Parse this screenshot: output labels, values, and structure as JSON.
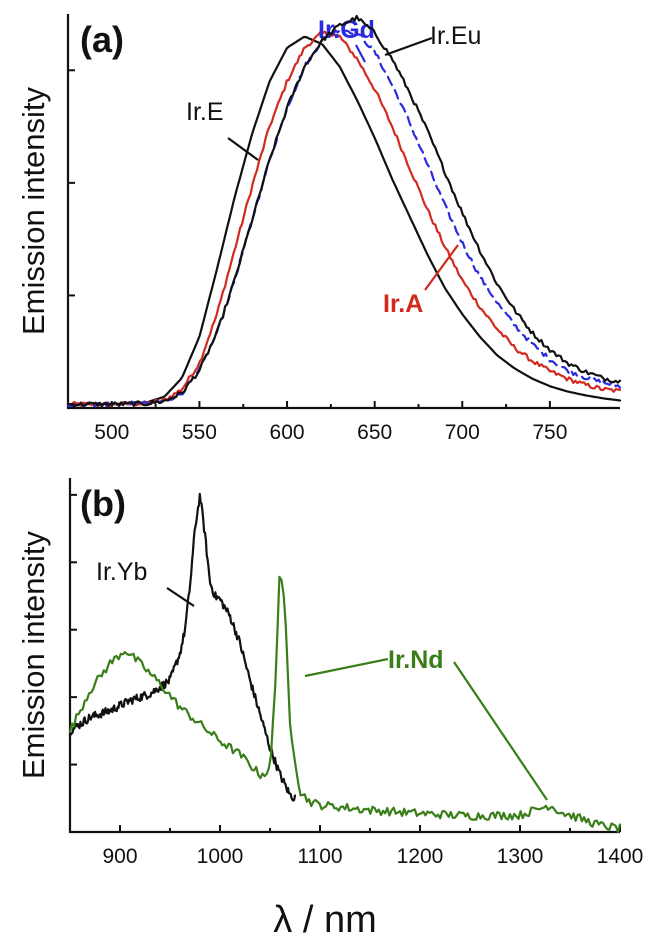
{
  "chart_data": [
    {
      "type": "line",
      "panel_label": "(a)",
      "xlabel": "",
      "ylabel": "Emission intensity",
      "xlim": [
        475,
        790
      ],
      "ylim": [
        0,
        1.05
      ],
      "xticks": [
        500,
        550,
        600,
        650,
        700,
        750
      ],
      "y_ticks_unlabeled": [
        0,
        0.3,
        0.6,
        0.9
      ],
      "grid": false,
      "legend": "none (labels placed directly on curves)",
      "series": [
        {
          "name": "Ir.E",
          "color": "#111111",
          "dashed": false,
          "x": [
            475,
            500,
            520,
            530,
            540,
            550,
            560,
            570,
            580,
            590,
            600,
            610,
            620,
            630,
            640,
            650,
            660,
            670,
            680,
            690,
            700,
            710,
            720,
            730,
            740,
            750,
            760,
            770,
            780,
            790
          ],
          "y": [
            0.01,
            0.01,
            0.015,
            0.03,
            0.08,
            0.19,
            0.37,
            0.56,
            0.73,
            0.87,
            0.96,
            0.99,
            0.97,
            0.91,
            0.82,
            0.72,
            0.61,
            0.51,
            0.41,
            0.32,
            0.25,
            0.19,
            0.14,
            0.105,
            0.078,
            0.058,
            0.044,
            0.034,
            0.026,
            0.02
          ]
        },
        {
          "name": "Ir.A",
          "color": "#d22a1e",
          "dashed": false,
          "x": [
            475,
            500,
            520,
            530,
            540,
            550,
            560,
            570,
            580,
            590,
            600,
            610,
            620,
            630,
            640,
            650,
            660,
            670,
            680,
            690,
            700,
            710,
            720,
            730,
            740,
            750,
            760,
            770,
            780,
            790
          ],
          "y": [
            0.01,
            0.01,
            0.012,
            0.02,
            0.05,
            0.12,
            0.25,
            0.42,
            0.59,
            0.75,
            0.87,
            0.96,
            1.0,
            0.99,
            0.93,
            0.85,
            0.75,
            0.64,
            0.53,
            0.43,
            0.34,
            0.27,
            0.21,
            0.16,
            0.125,
            0.098,
            0.078,
            0.062,
            0.05,
            0.045
          ]
        },
        {
          "name": "Ir.Gd",
          "color": "#2a2ae0",
          "dashed": true,
          "x": [
            475,
            500,
            520,
            530,
            540,
            550,
            560,
            570,
            580,
            590,
            600,
            610,
            620,
            630,
            640,
            650,
            660,
            670,
            680,
            690,
            700,
            710,
            720,
            730,
            740,
            750,
            760,
            770,
            780,
            790
          ],
          "y": [
            0.01,
            0.01,
            0.012,
            0.018,
            0.04,
            0.1,
            0.2,
            0.34,
            0.5,
            0.66,
            0.8,
            0.91,
            0.98,
            1.01,
            1.0,
            0.95,
            0.86,
            0.76,
            0.65,
            0.54,
            0.44,
            0.35,
            0.28,
            0.22,
            0.17,
            0.13,
            0.1,
            0.082,
            0.068,
            0.058
          ]
        },
        {
          "name": "Ir.Eu",
          "color": "#111111",
          "dashed": false,
          "x": [
            475,
            500,
            520,
            530,
            540,
            550,
            560,
            570,
            580,
            590,
            600,
            610,
            620,
            630,
            640,
            650,
            660,
            670,
            680,
            690,
            700,
            710,
            720,
            730,
            740,
            750,
            760,
            770,
            780,
            790
          ],
          "y": [
            0.01,
            0.01,
            0.012,
            0.018,
            0.04,
            0.1,
            0.2,
            0.34,
            0.5,
            0.66,
            0.8,
            0.91,
            0.98,
            1.02,
            1.04,
            1.0,
            0.93,
            0.84,
            0.74,
            0.63,
            0.52,
            0.42,
            0.33,
            0.26,
            0.2,
            0.155,
            0.12,
            0.097,
            0.08,
            0.07
          ]
        }
      ]
    },
    {
      "type": "line",
      "panel_label": "(b)",
      "xlabel": "λ / nm",
      "ylabel": "Emission intensity",
      "xlim": [
        850,
        1400
      ],
      "ylim": [
        0,
        1.05
      ],
      "xticks": [
        900,
        1000,
        1100,
        1200,
        1300,
        1400
      ],
      "y_ticks_unlabeled": [
        0,
        0.2,
        0.4,
        0.6,
        0.8,
        1.0
      ],
      "grid": false,
      "legend": "none (labels placed directly on curves)",
      "series": [
        {
          "name": "Ir.Yb",
          "color": "#111111",
          "dashed": false,
          "x": [
            850,
            870,
            890,
            910,
            930,
            950,
            960,
            965,
            970,
            975,
            980,
            985,
            990,
            995,
            1000,
            1010,
            1020,
            1030,
            1040,
            1050,
            1060,
            1070,
            1075
          ],
          "y": [
            0.3,
            0.34,
            0.36,
            0.39,
            0.41,
            0.45,
            0.53,
            0.6,
            0.73,
            0.9,
            1.0,
            0.88,
            0.74,
            0.7,
            0.69,
            0.64,
            0.56,
            0.45,
            0.35,
            0.25,
            0.17,
            0.11,
            0.1
          ]
        },
        {
          "name": "Ir.Nd",
          "color": "#3a7e1a",
          "dashed": false,
          "x": [
            850,
            870,
            890,
            905,
            920,
            940,
            960,
            980,
            1000,
            1020,
            1040,
            1050,
            1055,
            1060,
            1065,
            1070,
            1080,
            1090,
            1100,
            1150,
            1200,
            1250,
            1300,
            1330,
            1340,
            1360,
            1380,
            1400
          ],
          "y": [
            0.3,
            0.42,
            0.5,
            0.54,
            0.5,
            0.44,
            0.37,
            0.32,
            0.27,
            0.23,
            0.17,
            0.18,
            0.42,
            0.8,
            0.65,
            0.32,
            0.12,
            0.09,
            0.08,
            0.065,
            0.055,
            0.048,
            0.05,
            0.08,
            0.06,
            0.04,
            0.02,
            0.01
          ]
        }
      ]
    }
  ]
}
